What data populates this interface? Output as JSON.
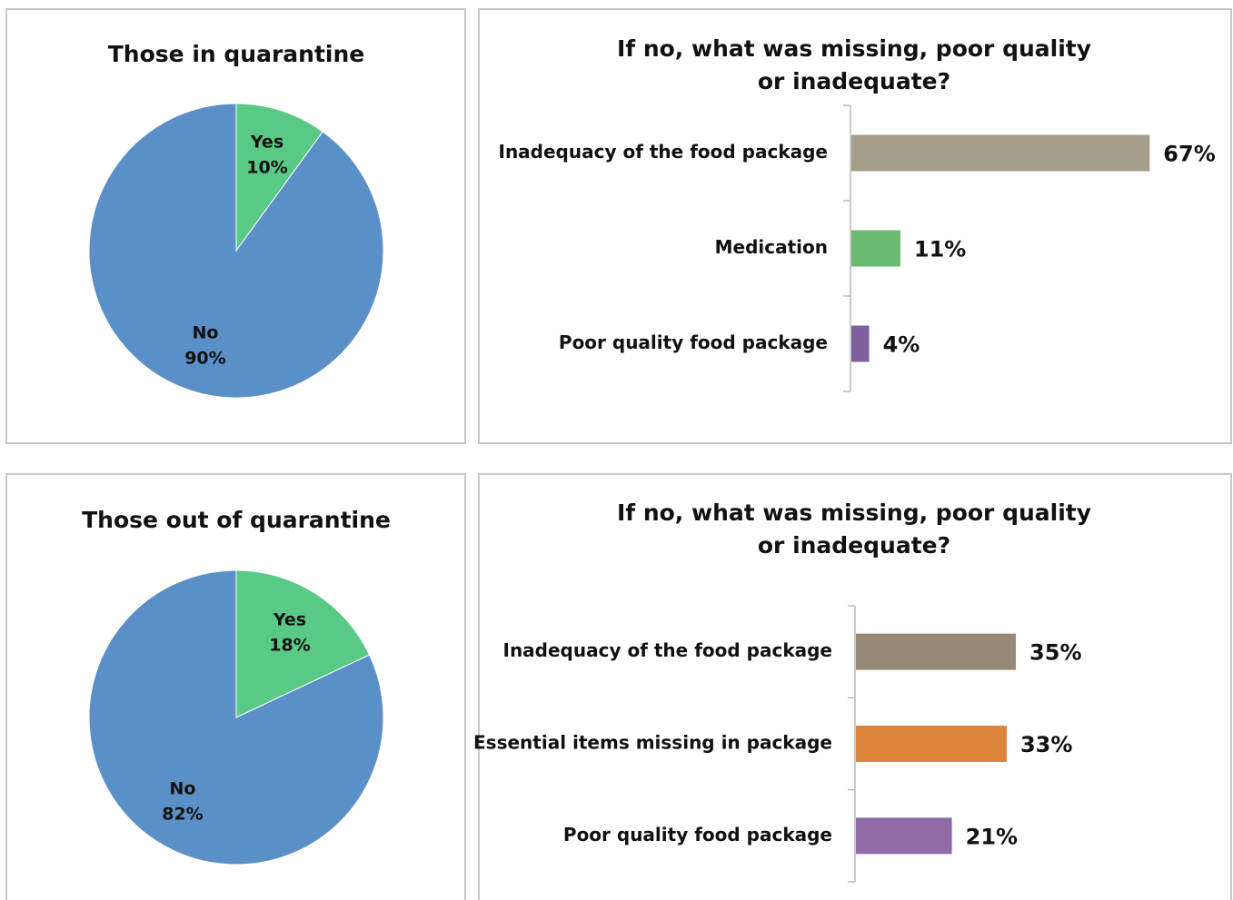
{
  "chart_data": [
    {
      "type": "pie",
      "title": "Those in quarantine",
      "categories": [
        "Yes",
        "No"
      ],
      "values": [
        10,
        90
      ],
      "value_labels": [
        "10%",
        "90%"
      ],
      "colors": [
        "#59c986",
        "#5b8fc7"
      ]
    },
    {
      "type": "barh",
      "title": "If no, what was missing, poor quality or inadequate?",
      "categories": [
        "Inadequacy of the food package",
        "Medication",
        "Poor quality food package"
      ],
      "values": [
        67,
        11,
        4
      ],
      "value_labels": [
        "67%",
        "11%",
        "4%"
      ],
      "colors": [
        "#a39d89",
        "#6aba70",
        "#7d619c"
      ]
    },
    {
      "type": "pie",
      "title": "Those out of quarantine",
      "categories": [
        "Yes",
        "No"
      ],
      "values": [
        18,
        82
      ],
      "value_labels": [
        "18%",
        "82%"
      ],
      "colors": [
        "#59c986",
        "#5b8fc7"
      ]
    },
    {
      "type": "barh",
      "title": "If no, what was missing, poor quality or inadequate?",
      "categories": [
        "Inadequacy of the food package",
        "Essential items missing in package",
        "Poor quality food package"
      ],
      "values": [
        35,
        33,
        21
      ],
      "value_labels": [
        "35%",
        "33%",
        "21%"
      ],
      "colors": [
        "#978a75",
        "#dc843a",
        "#8f6aa6"
      ]
    }
  ]
}
